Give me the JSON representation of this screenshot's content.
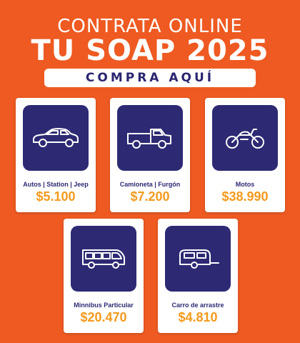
{
  "header": {
    "line1": "CONTRATA ONLINE",
    "line2": "TU SOAP 2025",
    "cta_label": "COMPRA AQUÍ"
  },
  "colors": {
    "background": "#ee5a21",
    "card_background": "#ffffff",
    "icon_box": "#2d2a73",
    "price": "#f39a1c",
    "label": "#2d2a73"
  },
  "plans": [
    {
      "label": "Autos | Station | Jeep",
      "price": "$5.100",
      "icon": "car-icon"
    },
    {
      "label": "Camioneta | Furgón",
      "price": "$7.200",
      "icon": "pickup-truck-icon"
    },
    {
      "label": "Motos",
      "price": "$38.990",
      "icon": "motorcycle-icon"
    },
    {
      "label": "Minnibus Particular",
      "price": "$20.470",
      "icon": "minibus-icon"
    },
    {
      "label": "Carro de arrastre",
      "price": "$4.810",
      "icon": "trailer-icon"
    }
  ]
}
